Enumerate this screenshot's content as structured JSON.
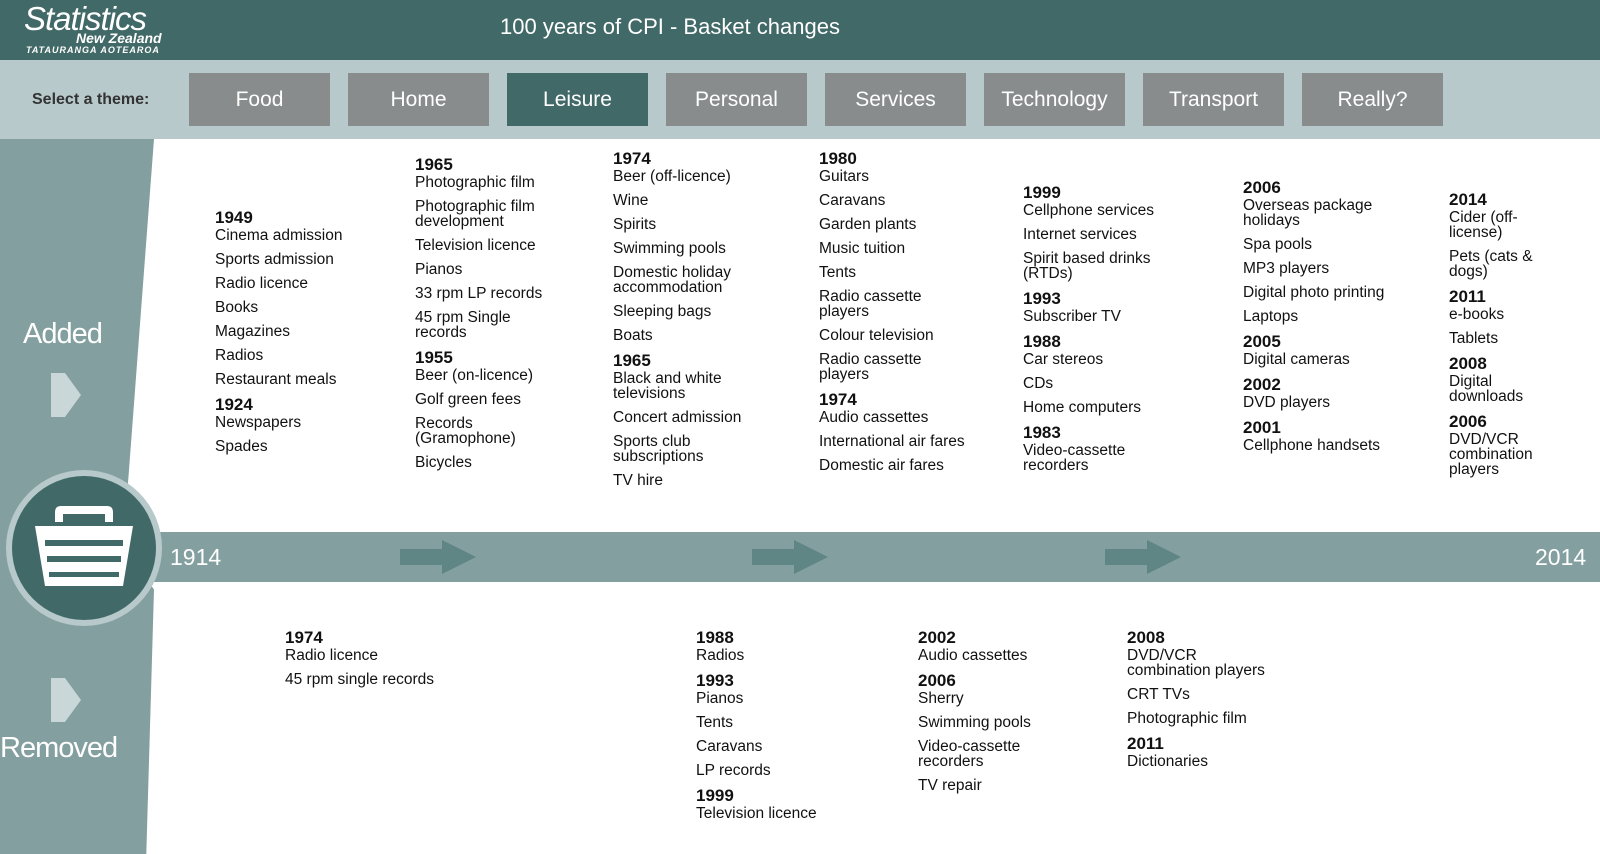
{
  "brand": {
    "name": "Statistics",
    "sub": "New Zealand",
    "tagline": "TATAURANGA AOTEAROA"
  },
  "page_title": "100 years of CPI - Basket changes",
  "theme_label": "Select a theme:",
  "themes": [
    "Food",
    "Home",
    "Leisure",
    "Personal",
    "Services",
    "Technology",
    "Transport",
    "Really?"
  ],
  "active_theme": "Leisure",
  "side": {
    "added": "Added",
    "removed": "Removed"
  },
  "timeline": {
    "start": "1914",
    "end": "2014"
  },
  "colors": {
    "header": "#416968",
    "theme_bar": "#b7c9ca",
    "button": "#888c8c",
    "button_active": "#416968",
    "timeline": "#849f9f",
    "side_panel": "#849f9f"
  },
  "added": [
    [
      {
        "year": "1949",
        "items": [
          "Cinema admission",
          "Sports admission",
          "Radio licence",
          "Books",
          "Magazines",
          "Radios",
          "Restaurant meals"
        ]
      },
      {
        "year": "1924",
        "items": [
          "Newspapers",
          "Spades"
        ]
      }
    ],
    [
      {
        "year": "1965",
        "items": [
          "Photographic film",
          "Photographic film development",
          "Television licence",
          "Pianos",
          "33 rpm LP records",
          "45 rpm Single records"
        ]
      },
      {
        "year": "1955",
        "items": [
          "Beer (on-licence)",
          "Golf green fees",
          "Records (Gramophone)",
          "Bicycles"
        ]
      }
    ],
    [
      {
        "year": "1974",
        "items": [
          "Beer (off-licence)",
          "Wine",
          "Spirits",
          "Swimming pools",
          "Domestic holiday accommodation",
          "Sleeping bags",
          "Boats"
        ]
      },
      {
        "year": "1965",
        "items": [
          "Black and white televisions",
          "Concert admission",
          "Sports club subscriptions",
          "TV hire"
        ]
      }
    ],
    [
      {
        "year": "1980",
        "items": [
          "Guitars",
          "Caravans",
          "Garden plants",
          "Music tuition",
          "Tents",
          "Radio cassette players",
          "Colour television",
          "Radio cassette players"
        ]
      },
      {
        "year": "1974",
        "items": [
          "Audio cassettes",
          "International air fares",
          "Domestic air fares"
        ]
      }
    ],
    [
      {
        "year": "1999",
        "items": [
          "Cellphone services",
          "Internet services",
          "Spirit based drinks (RTDs)"
        ]
      },
      {
        "year": "1993",
        "items": [
          "Subscriber TV"
        ]
      },
      {
        "year": "1988",
        "items": [
          "Car stereos",
          "CDs",
          "Home computers"
        ]
      },
      {
        "year": "1983",
        "items": [
          "Video-cassette recorders"
        ]
      }
    ],
    [
      {
        "year": "2006",
        "items": [
          "Overseas package holidays",
          "Spa pools",
          "MP3 players",
          "Digital photo printing",
          "Laptops"
        ]
      },
      {
        "year": "2005",
        "items": [
          "Digital cameras"
        ]
      },
      {
        "year": "2002",
        "items": [
          "DVD players"
        ]
      },
      {
        "year": "2001",
        "items": [
          "Cellphone handsets"
        ]
      }
    ],
    [
      {
        "year": "2014",
        "items": [
          "Cider (off-license)",
          "Pets (cats & dogs)"
        ]
      },
      {
        "year": "2011",
        "items": [
          "e-books",
          "Tablets"
        ]
      },
      {
        "year": "2008",
        "items": [
          "Digital downloads"
        ]
      },
      {
        "year": "2006",
        "items": [
          "DVD/VCR combination players"
        ]
      }
    ]
  ],
  "removed": [
    [
      {
        "year": "1974",
        "items": [
          "Radio licence",
          "45 rpm single records"
        ]
      }
    ],
    [
      {
        "year": "1988",
        "items": [
          "Radios"
        ]
      },
      {
        "year": "1993",
        "items": [
          "Pianos",
          "Tents",
          "Caravans",
          "LP records"
        ]
      },
      {
        "year": "1999",
        "items": [
          "Television licence"
        ]
      }
    ],
    [
      {
        "year": "2002",
        "items": [
          "Audio cassettes"
        ]
      },
      {
        "year": "2006",
        "items": [
          "Sherry",
          "Swimming pools",
          "Video-cassette recorders",
          "TV repair"
        ]
      }
    ],
    [
      {
        "year": "2008",
        "items": [
          "DVD/VCR combination players",
          "CRT TVs",
          "Photographic film"
        ]
      },
      {
        "year": "2011",
        "items": [
          "Dictionaries"
        ]
      }
    ]
  ]
}
